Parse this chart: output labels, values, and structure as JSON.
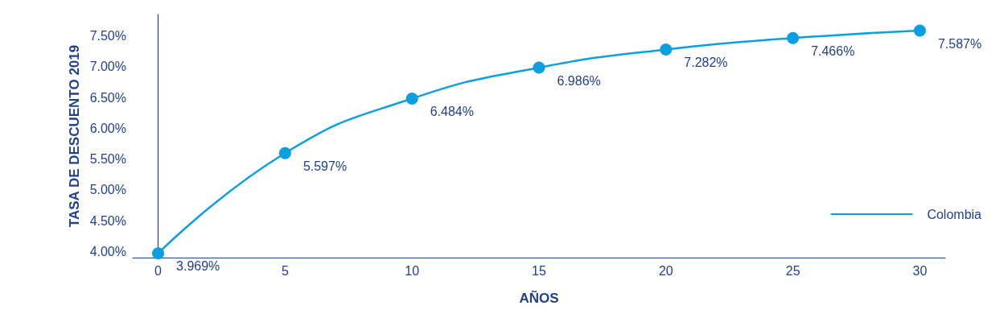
{
  "chart_data": {
    "type": "line",
    "xlabel": "AÑOS",
    "ylabel": "TASA DE DESCUENTO 2019",
    "x": [
      0,
      5,
      10,
      15,
      20,
      25,
      30
    ],
    "series": [
      {
        "name": "Colombia",
        "color": "#0a9fe0",
        "values": [
          3.969,
          5.597,
          6.484,
          6.986,
          7.282,
          7.466,
          7.587
        ],
        "value_labels": [
          "3.969%",
          "5.597%",
          "6.484%",
          "6.986%",
          "7.282%",
          "7.466%",
          "7.587%"
        ]
      }
    ],
    "xlim": [
      -1,
      31
    ],
    "xticks": [
      0,
      5,
      10,
      15,
      20,
      25,
      30
    ],
    "ylim": [
      3.9,
      7.85
    ],
    "yticks": [
      {
        "value": 4,
        "label": "4.00%"
      },
      {
        "value": 4.5,
        "label": "4.50%"
      },
      {
        "value": 5,
        "label": "5.00%"
      },
      {
        "value": 5.5,
        "label": "5.50%"
      },
      {
        "value": 6,
        "label": "6.00%"
      },
      {
        "value": 6.5,
        "label": "6.50%"
      },
      {
        "value": 7,
        "label": "7.00%"
      },
      {
        "value": 7.5,
        "label": "7.50%"
      }
    ],
    "grid": false,
    "legend": "right",
    "marker": "circle",
    "line_style": "solid"
  }
}
